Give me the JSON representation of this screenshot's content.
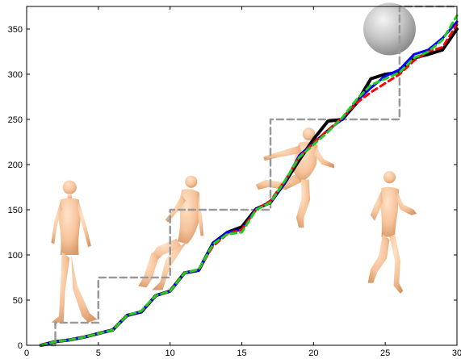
{
  "chart_data": {
    "type": "line",
    "title": "",
    "xlabel": "",
    "ylabel": "",
    "xlim": [
      0,
      30
    ],
    "ylim": [
      0,
      375
    ],
    "x_ticks": [
      0,
      5,
      10,
      15,
      20,
      25,
      30
    ],
    "y_ticks": [
      0,
      50,
      100,
      150,
      200,
      250,
      300,
      350
    ],
    "grid": false,
    "legend": "none",
    "series": [
      {
        "style": "step-dashed",
        "color": "#999999",
        "x": [
          1,
          2,
          2,
          4,
          4,
          5,
          5,
          9,
          9,
          10,
          10,
          16,
          16,
          17,
          17,
          25,
          25,
          26,
          26,
          30
        ],
        "y": [
          0,
          0,
          25,
          25,
          25,
          25,
          75,
          75,
          75,
          75,
          150,
          150,
          150,
          150,
          250,
          250,
          250,
          250,
          375,
          375
        ]
      },
      {
        "style": "solid",
        "color": "#000000",
        "x": [
          1,
          2,
          3,
          4,
          5,
          6,
          7,
          8,
          9,
          10,
          11,
          12,
          13,
          14,
          15,
          16,
          17,
          18,
          19,
          20,
          21,
          22,
          23,
          24,
          25,
          26,
          27,
          28,
          29,
          30
        ],
        "y": [
          0,
          4,
          6,
          9,
          13,
          17,
          33,
          37,
          55,
          60,
          80,
          83,
          113,
          125,
          131,
          151,
          158,
          180,
          205,
          228,
          248,
          250,
          268,
          295,
          300,
          302,
          318,
          322,
          327,
          350
        ]
      },
      {
        "style": "solid",
        "color": "#0000ff",
        "x": [
          1,
          2,
          3,
          4,
          5,
          6,
          7,
          8,
          9,
          10,
          11,
          12,
          13,
          14,
          15,
          16,
          17,
          18,
          19,
          20,
          21,
          22,
          23,
          24,
          25,
          26,
          27,
          28,
          29,
          30
        ],
        "y": [
          0,
          4,
          6,
          9,
          13,
          17,
          33,
          37,
          55,
          60,
          80,
          83,
          113,
          125,
          128,
          151,
          158,
          180,
          210,
          224,
          238,
          250,
          270,
          285,
          298,
          305,
          322,
          327,
          340,
          358
        ]
      },
      {
        "style": "dashed",
        "color": "#ff0000",
        "x": [
          1,
          2,
          3,
          4,
          5,
          6,
          7,
          8,
          9,
          10,
          11,
          12,
          13,
          14,
          15,
          16,
          17,
          18,
          19,
          20,
          21,
          22,
          23,
          24,
          25,
          26,
          27,
          28,
          29,
          30
        ],
        "y": [
          0,
          4,
          6,
          9,
          13,
          17,
          33,
          38,
          55,
          60,
          80,
          84,
          110,
          123,
          128,
          150,
          160,
          182,
          208,
          224,
          238,
          252,
          268,
          280,
          290,
          300,
          315,
          325,
          330,
          355
        ]
      },
      {
        "style": "dashed",
        "color": "#22cc22",
        "x": [
          1,
          2,
          3,
          4,
          5,
          6,
          7,
          8,
          9,
          10,
          11,
          12,
          13,
          14,
          15,
          16,
          17,
          18,
          19,
          20,
          21,
          22,
          23,
          24,
          25,
          26,
          27,
          28,
          29,
          30
        ],
        "y": [
          0,
          4,
          6,
          9,
          13,
          17,
          33,
          38,
          55,
          60,
          80,
          84,
          112,
          123,
          125,
          150,
          158,
          182,
          208,
          222,
          236,
          252,
          272,
          288,
          295,
          302,
          318,
          325,
          338,
          365
        ]
      }
    ],
    "illustrations": [
      {
        "icon": "standing-figure-icon",
        "x": 3,
        "y": 100,
        "h": 170
      },
      {
        "icon": "sitting-figure-icon",
        "x": 11,
        "y": 115,
        "h": 150
      },
      {
        "icon": "dancing-figure-icon",
        "x": 19.5,
        "y": 175,
        "h": 140
      },
      {
        "icon": "running-figure-icon",
        "x": 25.3,
        "y": 120,
        "h": 150
      },
      {
        "icon": "sphere-icon",
        "x": 25.3,
        "y": 350,
        "h": 58
      }
    ]
  }
}
